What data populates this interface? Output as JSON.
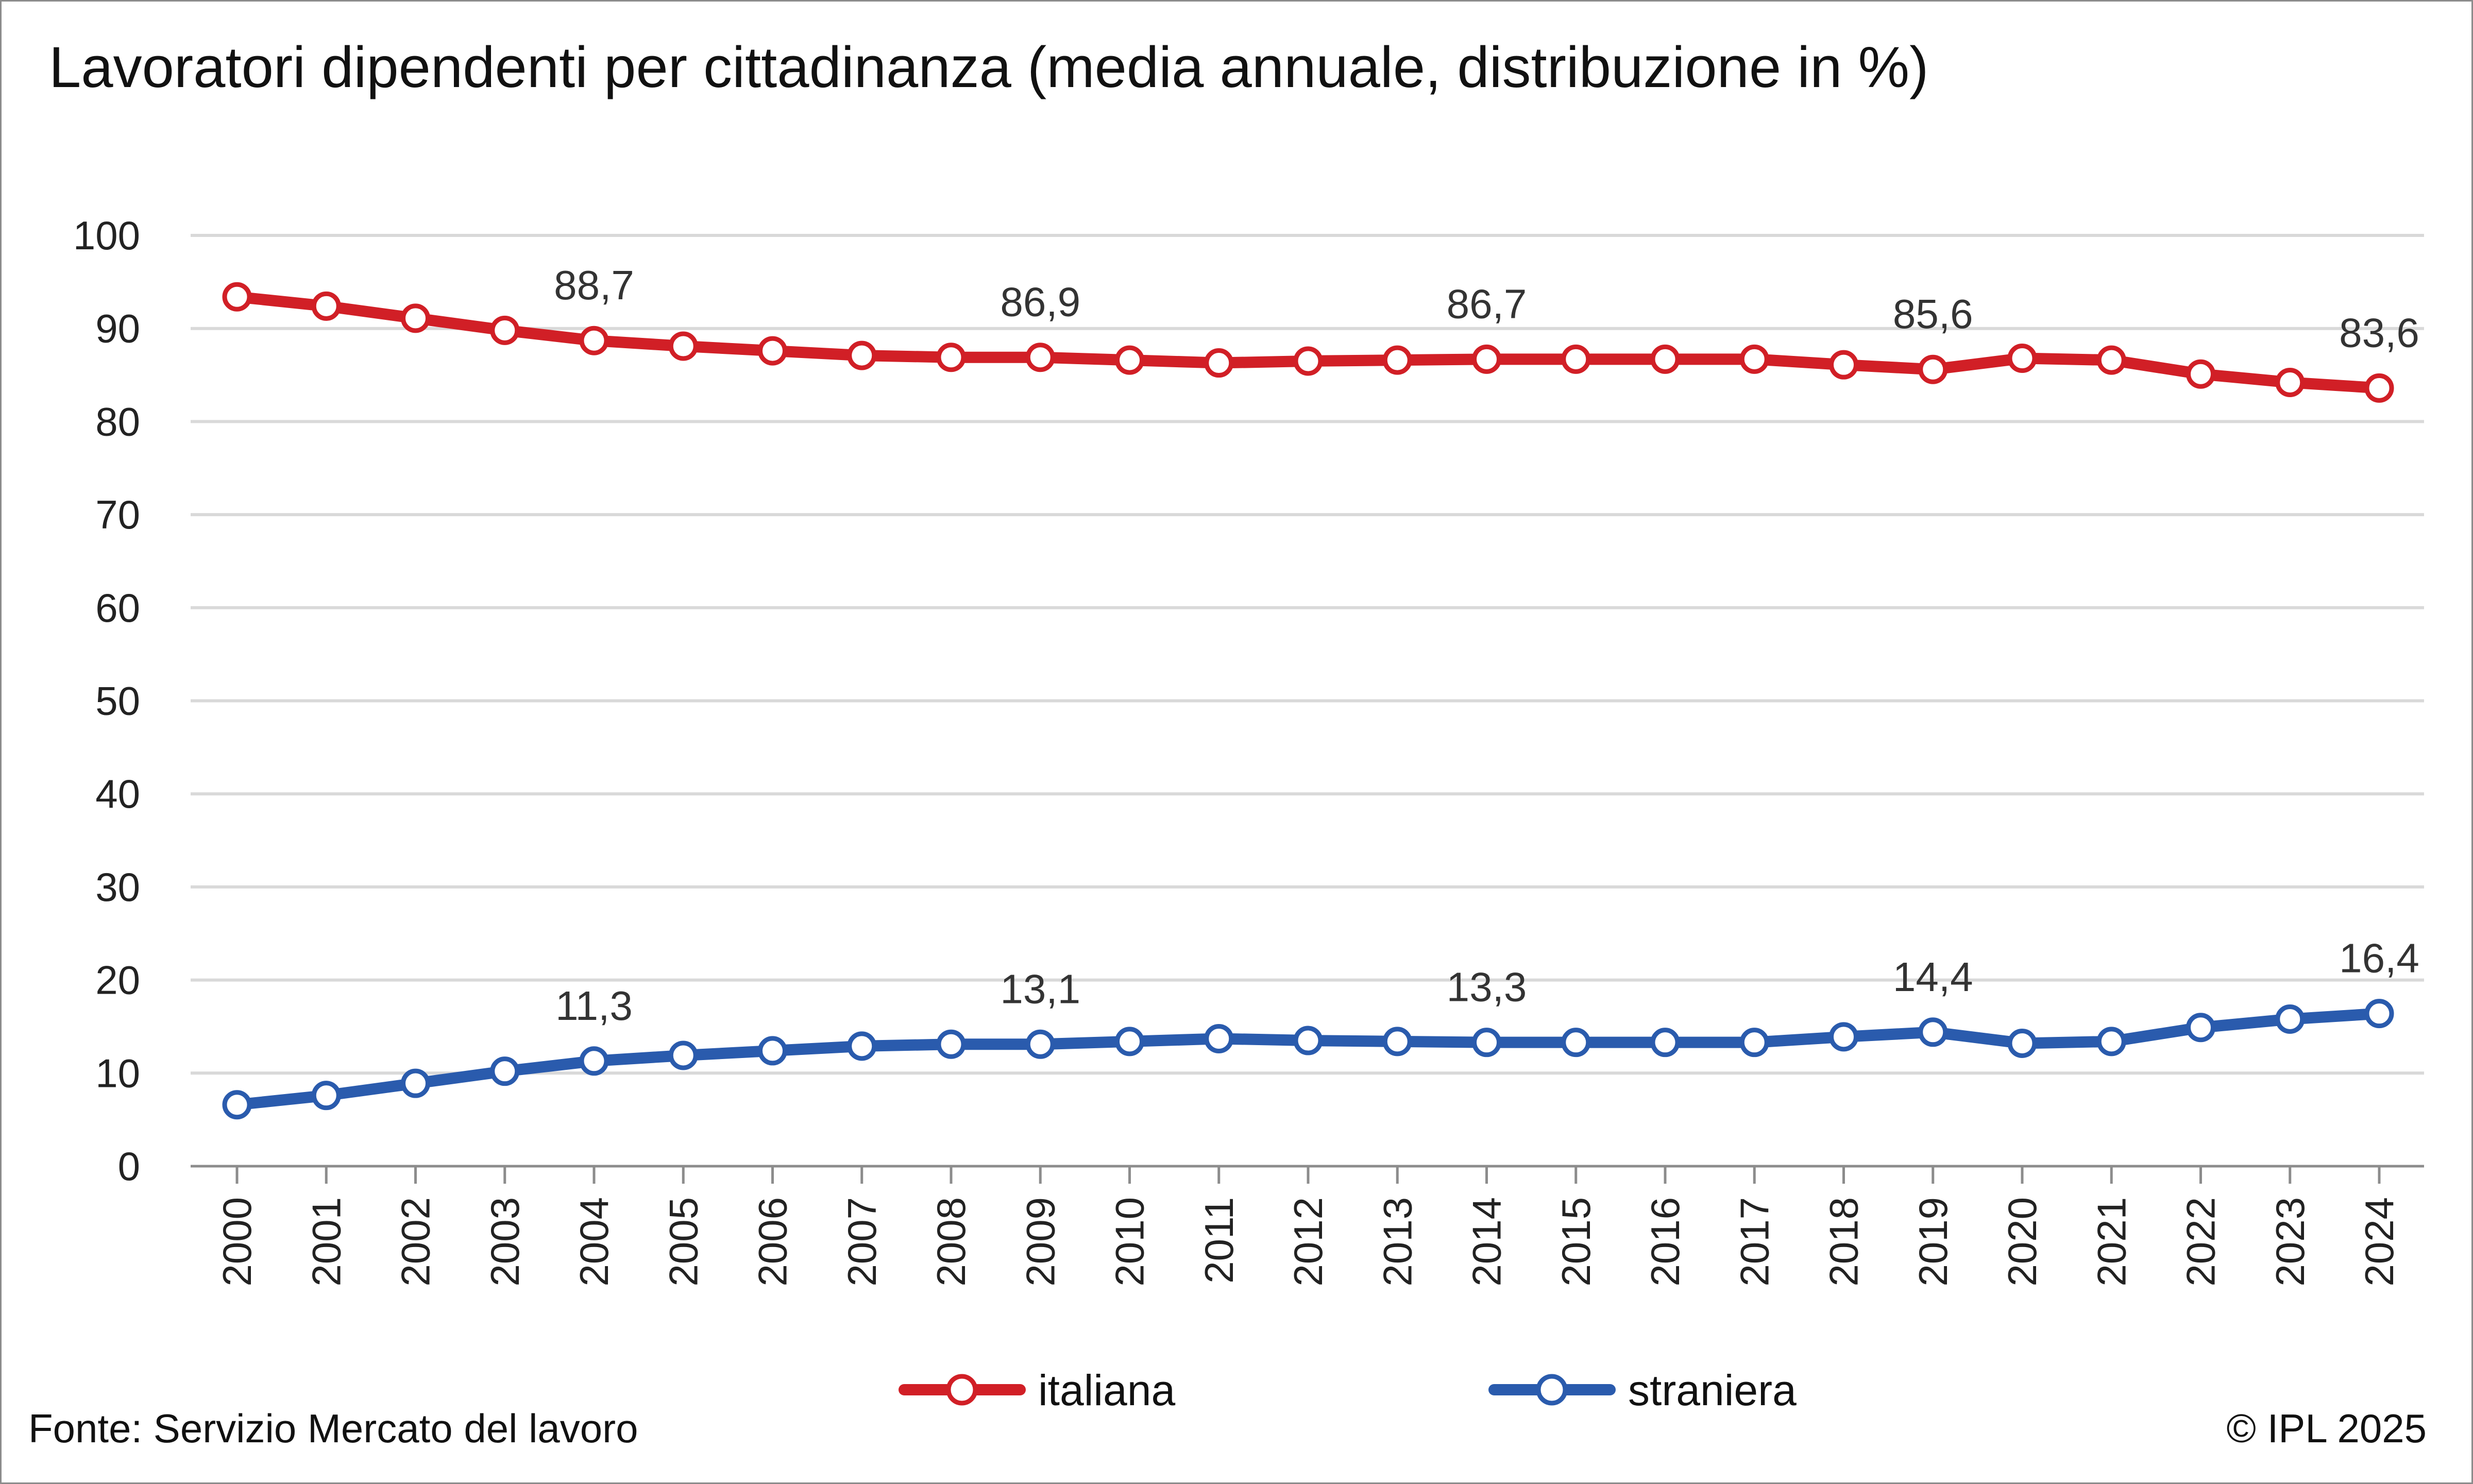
{
  "title": "Lavoratori dipendenti per cittadinanza (media annuale, distribuzione in %)",
  "source": "Fonte: Servizio Mercato del lavoro",
  "copyright": "© IPL 2025",
  "colors": {
    "italiana": "#d11f26",
    "straniera": "#2a5bad",
    "grid": "#d9d9d9",
    "axis": "#8c8c8c"
  },
  "chart_data": {
    "type": "line",
    "title": "Lavoratori dipendenti per cittadinanza (media annuale, distribuzione in %)",
    "xlabel": "",
    "ylabel": "",
    "ylim": [
      0,
      100
    ],
    "yticks": [
      0,
      10,
      20,
      30,
      40,
      50,
      60,
      70,
      80,
      90,
      100
    ],
    "grid": true,
    "legend": "bottom",
    "categories": [
      "2000",
      "2001",
      "2002",
      "2003",
      "2004",
      "2005",
      "2006",
      "2007",
      "2008",
      "2009",
      "2010",
      "2011",
      "2012",
      "2013",
      "2014",
      "2015",
      "2016",
      "2017",
      "2018",
      "2019",
      "2020",
      "2021",
      "2022",
      "2023",
      "2024"
    ],
    "series": [
      {
        "name": "italiana",
        "values": [
          93.4,
          92.4,
          91.1,
          89.8,
          88.7,
          88.1,
          87.6,
          87.1,
          86.9,
          86.9,
          86.6,
          86.3,
          86.5,
          86.6,
          86.7,
          86.7,
          86.7,
          86.7,
          86.1,
          85.6,
          86.8,
          86.6,
          85.1,
          84.2,
          83.6
        ],
        "data_labels": {
          "4": "88,7",
          "9": "86,9",
          "14": "86,7",
          "19": "85,6",
          "24": "83,6"
        }
      },
      {
        "name": "straniera",
        "values": [
          6.6,
          7.6,
          8.9,
          10.2,
          11.3,
          11.9,
          12.4,
          12.9,
          13.1,
          13.1,
          13.4,
          13.7,
          13.5,
          13.4,
          13.3,
          13.3,
          13.3,
          13.3,
          13.9,
          14.4,
          13.2,
          13.4,
          14.9,
          15.8,
          16.4
        ],
        "data_labels": {
          "4": "11,3",
          "9": "13,1",
          "14": "13,3",
          "19": "14,4",
          "24": "16,4"
        }
      }
    ]
  }
}
